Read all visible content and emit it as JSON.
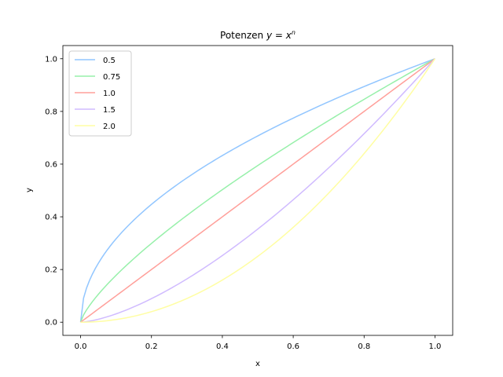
{
  "chart_data": {
    "type": "line",
    "title": "Potenzen y = x^n",
    "title_parts": {
      "prefix": "Potenzen ",
      "base": "y = x",
      "exponent": "n"
    },
    "xlabel": "x",
    "ylabel": "y",
    "xlim": [
      -0.05,
      1.05
    ],
    "ylim": [
      -0.05,
      1.05
    ],
    "xticks": [
      "0.0",
      "0.2",
      "0.4",
      "0.6",
      "0.8",
      "1.0"
    ],
    "xtick_values": [
      0.0,
      0.2,
      0.4,
      0.6,
      0.8,
      1.0
    ],
    "yticks": [
      "0.0",
      "0.2",
      "0.4",
      "0.6",
      "0.8",
      "1.0"
    ],
    "ytick_values": [
      0.0,
      0.2,
      0.4,
      0.6,
      0.8,
      1.0
    ],
    "grid": false,
    "legend_position": "top-left",
    "x": [
      0,
      0.01,
      0.025,
      0.05,
      0.1,
      0.15,
      0.2,
      0.25,
      0.3,
      0.35,
      0.4,
      0.45,
      0.5,
      0.55,
      0.6,
      0.65,
      0.7,
      0.75,
      0.8,
      0.85,
      0.9,
      0.95,
      1.0
    ],
    "series": [
      {
        "name": "0.5",
        "exponent": 0.5,
        "color": "#92c6ff",
        "values": [
          0,
          0.1,
          0.158,
          0.224,
          0.316,
          0.387,
          0.447,
          0.5,
          0.548,
          0.592,
          0.632,
          0.671,
          0.707,
          0.742,
          0.775,
          0.806,
          0.837,
          0.866,
          0.894,
          0.922,
          0.949,
          0.975,
          1.0
        ]
      },
      {
        "name": "0.75",
        "exponent": 0.75,
        "color": "#97f0aa",
        "values": [
          0,
          0.032,
          0.063,
          0.106,
          0.178,
          0.241,
          0.299,
          0.354,
          0.405,
          0.455,
          0.503,
          0.549,
          0.595,
          0.639,
          0.682,
          0.724,
          0.765,
          0.806,
          0.846,
          0.885,
          0.924,
          0.962,
          1.0
        ]
      },
      {
        "name": "1.0",
        "exponent": 1.0,
        "color": "#ff9f9a",
        "values": [
          0,
          0.01,
          0.025,
          0.05,
          0.1,
          0.15,
          0.2,
          0.25,
          0.3,
          0.35,
          0.4,
          0.45,
          0.5,
          0.55,
          0.6,
          0.65,
          0.7,
          0.75,
          0.8,
          0.85,
          0.9,
          0.95,
          1.0
        ]
      },
      {
        "name": "1.5",
        "exponent": 1.5,
        "color": "#d0bbff",
        "values": [
          0,
          0.001,
          0.004,
          0.011,
          0.032,
          0.058,
          0.089,
          0.125,
          0.164,
          0.207,
          0.253,
          0.302,
          0.354,
          0.408,
          0.465,
          0.524,
          0.586,
          0.65,
          0.716,
          0.784,
          0.854,
          0.926,
          1.0
        ]
      },
      {
        "name": "2.0",
        "exponent": 2.0,
        "color": "#fffea3",
        "values": [
          0,
          0.0001,
          0.001,
          0.003,
          0.01,
          0.023,
          0.04,
          0.063,
          0.09,
          0.123,
          0.16,
          0.203,
          0.25,
          0.303,
          0.36,
          0.423,
          0.49,
          0.563,
          0.64,
          0.723,
          0.81,
          0.903,
          1.0
        ]
      }
    ]
  }
}
